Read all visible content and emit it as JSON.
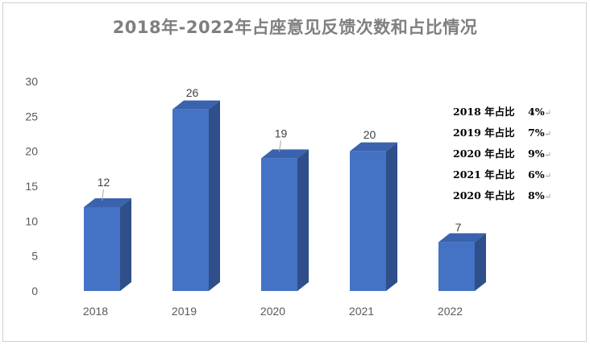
{
  "chart_data": {
    "type": "bar",
    "title": "2018年-2022年占座意见反馈次数和占比情况",
    "categories": [
      "2018",
      "2019",
      "2020",
      "2021",
      "2022"
    ],
    "values": [
      12,
      26,
      19,
      20,
      7
    ],
    "ylim": [
      0,
      30
    ],
    "yticks": [
      0,
      5,
      10,
      15,
      20,
      25,
      30
    ],
    "xlabel": "",
    "ylabel": "",
    "grid": false,
    "style": "3d-column",
    "bar_color": "#4472c4",
    "bar_side_color": "#2f4f8a",
    "bar_top_color": "#3a62ae"
  },
  "share_notes": [
    {
      "label": "2018 年占比",
      "value": "4%",
      "mark": "↵"
    },
    {
      "label": "2019 年占比",
      "value": "7%",
      "mark": "↵"
    },
    {
      "label": "2020 年占比",
      "value": "9%",
      "mark": "↵"
    },
    {
      "label": "2021 年占比",
      "value": "6%",
      "mark": "↵"
    },
    {
      "label": "2020 年占比",
      "value": "8%",
      "mark": "↵"
    }
  ]
}
